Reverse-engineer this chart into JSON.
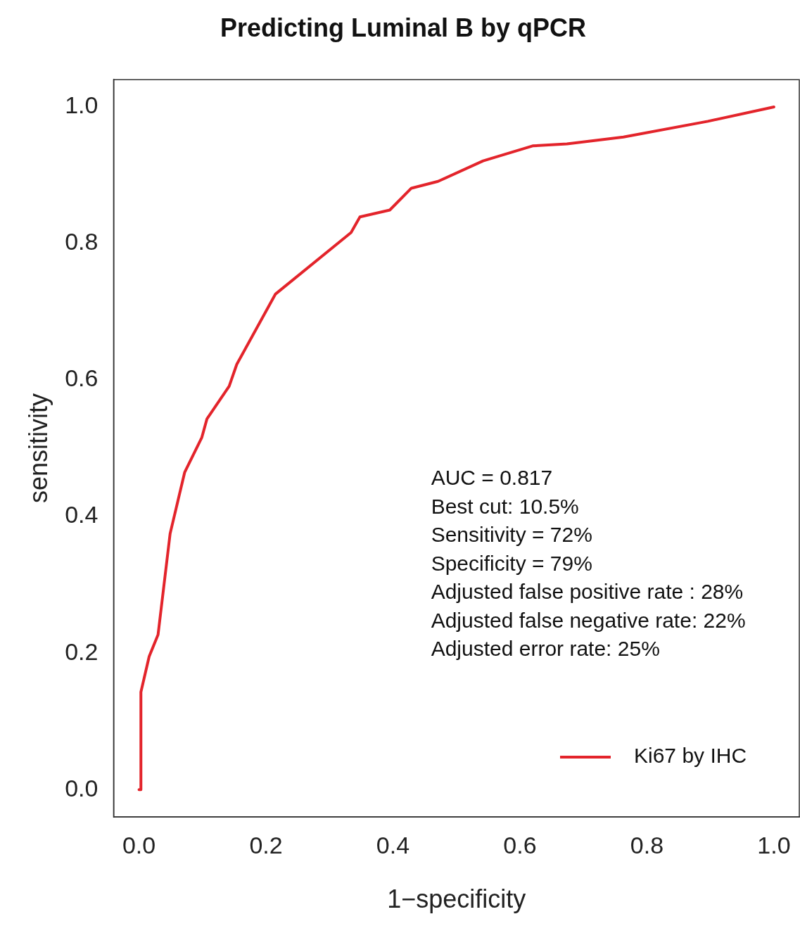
{
  "chart_data": {
    "type": "line",
    "title": "Predicting Luminal B by qPCR",
    "xlabel": "1−specificity",
    "ylabel": "sensitivity",
    "xlim": [
      -0.04,
      1.04
    ],
    "ylim": [
      -0.04,
      1.04
    ],
    "xticks": [
      {
        "value": 0,
        "label": "0.0"
      },
      0.2,
      0.4,
      0.6,
      0.8,
      {
        "value": 1,
        "label": "1.0"
      }
    ],
    "yticks": [
      {
        "value": 0,
        "label": "0.0"
      },
      0.2,
      0.4,
      0.6,
      0.8,
      {
        "value": 1,
        "label": "1.0"
      }
    ],
    "series": [
      {
        "name": "Ki67 by IHC",
        "color": "#e3242b",
        "x": [
          0,
          0.003,
          0.003,
          0.016,
          0.03,
          0.049,
          0.072,
          0.099,
          0.107,
          0.142,
          0.154,
          0.215,
          0.334,
          0.348,
          0.395,
          0.429,
          0.471,
          0.542,
          0.62,
          0.674,
          0.763,
          0.896,
          1
        ],
        "values": [
          0,
          0,
          0.143,
          0.195,
          0.227,
          0.375,
          0.465,
          0.516,
          0.543,
          0.591,
          0.623,
          0.726,
          0.816,
          0.839,
          0.849,
          0.881,
          0.891,
          0.921,
          0.943,
          0.946,
          0.956,
          0.979,
          1
        ]
      }
    ],
    "annotations": [
      "AUC = 0.817",
      "Best cut: 10.5%",
      "Sensitivity = 72%",
      "Specificity = 79%",
      "Adjusted false positive rate : 28%",
      "Adjusted false negative rate: 22%",
      "Adjusted error rate: 25%"
    ],
    "legend": "bottom right",
    "grid": false,
    "marker": "none",
    "line_style": "solid"
  }
}
